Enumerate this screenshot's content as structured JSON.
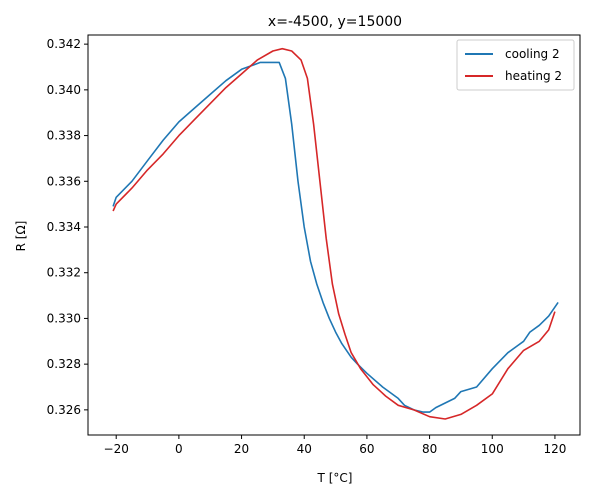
{
  "chart_data": {
    "type": "line",
    "title": "x=-4500, y=15000",
    "xlabel": "T [°C]",
    "ylabel": "R [Ω]",
    "xlim": [
      -29,
      128
    ],
    "ylim": [
      0.3249,
      0.3424
    ],
    "xticks": [
      -20,
      0,
      20,
      40,
      60,
      80,
      100,
      120
    ],
    "yticks": [
      0.326,
      0.328,
      0.33,
      0.332,
      0.334,
      0.336,
      0.338,
      0.34,
      0.342
    ],
    "ytick_labels": [
      "0.326",
      "0.328",
      "0.330",
      "0.332",
      "0.334",
      "0.336",
      "0.338",
      "0.340",
      "0.342"
    ],
    "grid": false,
    "legend_position": "top-right",
    "series": [
      {
        "name": "cooling 2",
        "color": "#1f77b4",
        "x": [
          121,
          118,
          115,
          112,
          110,
          108,
          105,
          100,
          95,
          90,
          88,
          85,
          82,
          80,
          78,
          75,
          72,
          70,
          65,
          60,
          57,
          55,
          52,
          50,
          48,
          46,
          44,
          42,
          40,
          38,
          36,
          34,
          32,
          30,
          28,
          26,
          24,
          22,
          20,
          15,
          10,
          5,
          0,
          -5,
          -10,
          -15,
          -20,
          -21
        ],
        "y": [
          0.3307,
          0.3301,
          0.3297,
          0.3294,
          0.329,
          0.3288,
          0.3285,
          0.3278,
          0.327,
          0.3268,
          0.3265,
          0.3263,
          0.3261,
          0.3259,
          0.3259,
          0.326,
          0.3262,
          0.3265,
          0.327,
          0.3276,
          0.328,
          0.3283,
          0.3289,
          0.3294,
          0.33,
          0.3307,
          0.3315,
          0.3325,
          0.334,
          0.336,
          0.3385,
          0.3405,
          0.3412,
          0.3412,
          0.3412,
          0.3412,
          0.3411,
          0.341,
          0.3409,
          0.3404,
          0.3398,
          0.3392,
          0.3386,
          0.3378,
          0.3369,
          0.336,
          0.3353,
          0.3349
        ]
      },
      {
        "name": "heating 2",
        "color": "#d62728",
        "x": [
          -21,
          -20,
          -15,
          -10,
          -5,
          0,
          5,
          10,
          15,
          20,
          25,
          30,
          33,
          36,
          39,
          41,
          43,
          45,
          47,
          49,
          51,
          53,
          55,
          58,
          62,
          66,
          70,
          75,
          80,
          85,
          90,
          95,
          100,
          105,
          110,
          115,
          118,
          120
        ],
        "y": [
          0.3347,
          0.335,
          0.3357,
          0.3365,
          0.3372,
          0.338,
          0.3387,
          0.3394,
          0.3401,
          0.3407,
          0.3413,
          0.3417,
          0.3418,
          0.3417,
          0.3413,
          0.3405,
          0.3385,
          0.336,
          0.3335,
          0.3315,
          0.3302,
          0.3293,
          0.3285,
          0.3278,
          0.3271,
          0.3266,
          0.3262,
          0.326,
          0.3257,
          0.3256,
          0.3258,
          0.3262,
          0.3267,
          0.3278,
          0.3286,
          0.329,
          0.3295,
          0.3303
        ]
      }
    ]
  }
}
